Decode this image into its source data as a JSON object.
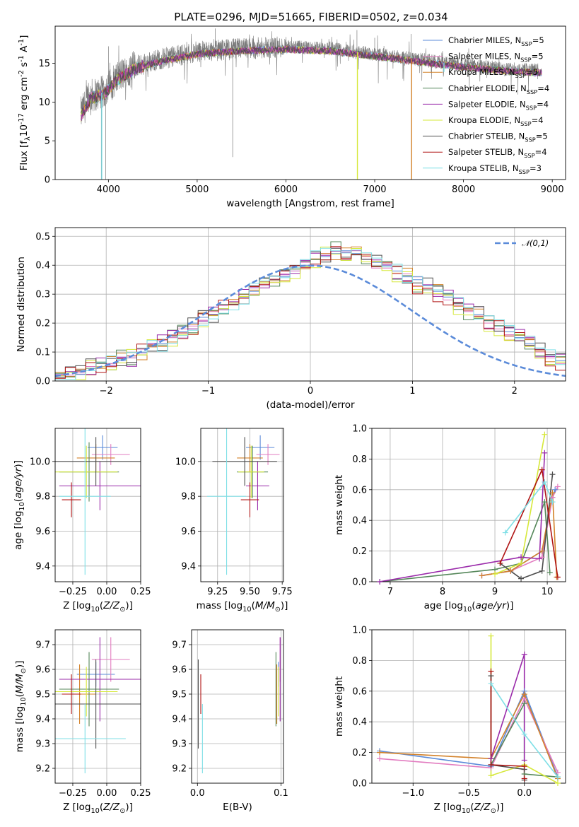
{
  "figure": {
    "title": "PLATE=0296, MJD=51665, FIBERID=0502, z=0.034",
    "models": [
      {
        "name": "Chabrier MILES, N$_{SSP}$=5",
        "color": "#5b8bd9"
      },
      {
        "name": "Salpeter MILES, N$_{SSP}$=5",
        "color": "#e27cc0"
      },
      {
        "name": "Kroupa MILES, N$_{SSP}$=5",
        "color": "#d3822a"
      },
      {
        "name": "Chabrier ELODIE, N$_{SSP}$=4",
        "color": "#55875a"
      },
      {
        "name": "Salpeter ELODIE, N$_{SSP}$=4",
        "color": "#9a2aaa"
      },
      {
        "name": "Kroupa ELODIE, N$_{SSP}$=4",
        "color": "#d6e83a"
      },
      {
        "name": "Chabrier STELIB, N$_{SSP}$=5",
        "color": "#4d4d4d"
      },
      {
        "name": "Salpeter STELIB, N$_{SSP}$=4",
        "color": "#b01515"
      },
      {
        "name": "Kroupa STELIB, N$_{SSP}$=3",
        "color": "#7fdfe6"
      }
    ]
  },
  "chart_data": [
    {
      "type": "line",
      "panel": "spectrum",
      "xlabel": "wavelength [Angstrom, rest frame]",
      "ylabel": "Flux [f$_\\lambda$10$^{-17}$ erg cm$^{-2}$ s$^{-1}$ A$^{-1}$]",
      "xlim": [
        3400,
        9150
      ],
      "ylim": [
        0,
        19.8
      ],
      "xticks": [
        4000,
        5000,
        6000,
        7000,
        8000,
        9000
      ],
      "yticks": [
        0,
        5,
        10,
        15
      ],
      "grid": false,
      "legend": "right",
      "continuum": [
        [
          3690,
          8.5
        ],
        [
          3800,
          10.8
        ],
        [
          3950,
          11.3
        ],
        [
          4100,
          13.2
        ],
        [
          4300,
          14.6
        ],
        [
          4600,
          15.6
        ],
        [
          5000,
          16.5
        ],
        [
          5500,
          16.9
        ],
        [
          6000,
          17.1
        ],
        [
          6500,
          16.9
        ],
        [
          7000,
          16.2
        ],
        [
          7500,
          15.5
        ],
        [
          8000,
          14.8
        ],
        [
          8500,
          14.3
        ],
        [
          8850,
          14.1
        ]
      ],
      "data_spikes": [
        [
          3920,
          0
        ],
        [
          3970,
          0
        ],
        [
          4000,
          17.2
        ],
        [
          5205,
          19.5
        ],
        [
          5400,
          2.9
        ],
        [
          5800,
          18.1
        ],
        [
          6800,
          19.3
        ],
        [
          7000,
          18.3
        ],
        [
          7410,
          18.8
        ]
      ],
      "model_drops": [
        [
          6805,
          0
        ],
        [
          7415,
          0
        ],
        [
          3925,
          0
        ],
        [
          7780,
          13.9
        ]
      ]
    },
    {
      "type": "bar",
      "panel": "residual-histogram",
      "xlabel": "(data-model)/error",
      "ylabel": "Normed distribution",
      "xlim": [
        -2.5,
        2.5
      ],
      "ylim": [
        0,
        0.53
      ],
      "xticks": [
        -2,
        -1,
        0,
        1,
        2
      ],
      "yticks": [
        0.0,
        0.1,
        0.2,
        0.3,
        0.4,
        0.5
      ],
      "grid": true,
      "legend": "top-right",
      "reference": {
        "name": "$\\mathcal{N}(0,1)$",
        "color": "#5b8bd9"
      },
      "bin_width": 0.1,
      "bin_start": -2.5,
      "series": [
        {
          "model": 0,
          "values": [
            0.02,
            0.03,
            0.04,
            0.05,
            0.05,
            0.06,
            0.07,
            0.08,
            0.1,
            0.12,
            0.13,
            0.15,
            0.17,
            0.2,
            0.22,
            0.23,
            0.25,
            0.27,
            0.29,
            0.31,
            0.33,
            0.35,
            0.36,
            0.38,
            0.4,
            0.42,
            0.43,
            0.44,
            0.45,
            0.44,
            0.42,
            0.41,
            0.4,
            0.38,
            0.36,
            0.35,
            0.33,
            0.31,
            0.29,
            0.27,
            0.25,
            0.23,
            0.21,
            0.19,
            0.17,
            0.15,
            0.13,
            0.11,
            0.09,
            0.07
          ]
        },
        {
          "model": 2,
          "values": [
            0.02,
            0.02,
            0.03,
            0.05,
            0.05,
            0.06,
            0.08,
            0.08,
            0.11,
            0.12,
            0.14,
            0.15,
            0.18,
            0.19,
            0.21,
            0.24,
            0.26,
            0.27,
            0.3,
            0.3,
            0.33,
            0.34,
            0.37,
            0.38,
            0.41,
            0.4,
            0.44,
            0.46,
            0.42,
            0.45,
            0.43,
            0.39,
            0.39,
            0.37,
            0.37,
            0.33,
            0.32,
            0.3,
            0.28,
            0.26,
            0.24,
            0.22,
            0.2,
            0.18,
            0.16,
            0.14,
            0.12,
            0.1,
            0.08,
            0.06
          ]
        }
      ],
      "normal_curve": true
    },
    {
      "type": "scatter",
      "panel": "age-vs-Z",
      "xlabel": "Z [log$_{10}$($Z/Z_\\odot$)]",
      "ylabel": "age  [log$_{10}$($age/yr$)]",
      "xlim": [
        -0.38,
        0.25
      ],
      "ylim": [
        9.31,
        10.19
      ],
      "xticks": [
        -0.25,
        0.0,
        0.25
      ],
      "yticks": [
        9.4,
        9.6,
        9.8,
        10.0
      ],
      "grid": true,
      "points": [
        {
          "model": 0,
          "x": -0.03,
          "y": 10.08,
          "xerr": 0.11,
          "yerr": 0.07
        },
        {
          "model": 1,
          "x": 0.03,
          "y": 10.04,
          "xerr": 0.14,
          "yerr": 0.06
        },
        {
          "model": 2,
          "x": -0.08,
          "y": 10.02,
          "xerr": 0.14,
          "yerr": 0.08
        },
        {
          "model": 3,
          "x": -0.13,
          "y": 9.94,
          "xerr": 0.22,
          "yerr": 0.17
        },
        {
          "model": 4,
          "x": -0.05,
          "y": 9.86,
          "xerr": 0.3,
          "yerr": 0.14
        },
        {
          "model": 5,
          "x": -0.15,
          "y": 9.94,
          "xerr": 0.23,
          "yerr": 0.15
        },
        {
          "model": 6,
          "x": -0.08,
          "y": 10.0,
          "xerr": 0.33,
          "yerr": 0.14
        },
        {
          "model": 7,
          "x": -0.26,
          "y": 9.78,
          "xerr": 0.07,
          "yerr": 0.1
        },
        {
          "model": 8,
          "x": -0.16,
          "y": 9.8,
          "xerr": 0.19,
          "yerr": 0.45
        }
      ]
    },
    {
      "type": "scatter",
      "panel": "age-vs-mass",
      "xlabel": "mass [log$_{10}$($M/M_\\odot$)]",
      "ylabel": "",
      "xlim": [
        9.12,
        9.76
      ],
      "ylim": [
        9.31,
        10.19
      ],
      "xticks": [
        9.25,
        9.5,
        9.75
      ],
      "yticks": [
        9.4,
        9.6,
        9.8,
        10.0
      ],
      "grid": true,
      "points": [
        {
          "model": 0,
          "x": 9.58,
          "y": 10.08,
          "xerr": 0.11,
          "yerr": 0.07
        },
        {
          "model": 1,
          "x": 9.64,
          "y": 10.04,
          "xerr": 0.09,
          "yerr": 0.06
        },
        {
          "model": 2,
          "x": 9.5,
          "y": 10.02,
          "xerr": 0.1,
          "yerr": 0.08
        },
        {
          "model": 3,
          "x": 9.52,
          "y": 9.94,
          "xerr": 0.12,
          "yerr": 0.15
        },
        {
          "model": 4,
          "x": 9.56,
          "y": 9.86,
          "xerr": 0.09,
          "yerr": 0.14
        },
        {
          "model": 5,
          "x": 9.51,
          "y": 9.94,
          "xerr": 0.1,
          "yerr": 0.15
        },
        {
          "model": 6,
          "x": 9.46,
          "y": 10.0,
          "xerr": 0.25,
          "yerr": 0.14
        },
        {
          "model": 7,
          "x": 9.5,
          "y": 9.78,
          "xerr": 0.07,
          "yerr": 0.1
        },
        {
          "model": 8,
          "x": 9.32,
          "y": 9.8,
          "xerr": 0.15,
          "yerr": 0.45
        }
      ]
    },
    {
      "type": "line",
      "panel": "mass-weight-vs-age",
      "xlabel": "age  [log$_{10}$($age/yr$)]",
      "ylabel": "mass weight",
      "xlim": [
        6.65,
        10.35
      ],
      "ylim": [
        0,
        1.0
      ],
      "xticks": [
        7,
        8,
        9,
        10
      ],
      "yticks": [
        0.0,
        0.2,
        0.4,
        0.6,
        0.8,
        1.0
      ],
      "grid": true,
      "series": [
        {
          "model": 0,
          "points": [
            [
              8.75,
              0.04
            ],
            [
              9.3,
              0.07
            ],
            [
              9.9,
              0.2
            ],
            [
              10.1,
              0.55
            ],
            [
              10.15,
              0.6
            ]
          ]
        },
        {
          "model": 1,
          "points": [
            [
              8.75,
              0.04
            ],
            [
              9.3,
              0.07
            ],
            [
              9.9,
              0.16
            ],
            [
              10.1,
              0.55
            ],
            [
              10.2,
              0.62
            ]
          ]
        },
        {
          "model": 2,
          "points": [
            [
              8.75,
              0.04
            ],
            [
              9.3,
              0.07
            ],
            [
              9.9,
              0.2
            ],
            [
              10.1,
              0.58
            ],
            [
              10.18,
              0.03
            ]
          ]
        },
        {
          "model": 3,
          "points": [
            [
              6.8,
              0.0
            ],
            [
              9.0,
              0.08
            ],
            [
              9.5,
              0.12
            ],
            [
              9.95,
              0.52
            ],
            [
              10.05,
              0.06
            ]
          ]
        },
        {
          "model": 4,
          "points": [
            [
              6.8,
              0.0
            ],
            [
              9.5,
              0.16
            ],
            [
              9.85,
              0.15
            ],
            [
              9.95,
              0.84
            ]
          ]
        },
        {
          "model": 5,
          "points": [
            [
              9.0,
              0.05
            ],
            [
              9.5,
              0.12
            ],
            [
              9.95,
              0.96
            ]
          ]
        },
        {
          "model": 6,
          "points": [
            [
              9.1,
              0.12
            ],
            [
              9.5,
              0.02
            ],
            [
              9.9,
              0.07
            ],
            [
              10.1,
              0.7
            ]
          ]
        },
        {
          "model": 7,
          "points": [
            [
              9.1,
              0.12
            ],
            [
              9.9,
              0.73
            ],
            [
              10.2,
              0.03
            ]
          ]
        },
        {
          "model": 8,
          "points": [
            [
              9.2,
              0.32
            ],
            [
              9.95,
              0.65
            ],
            [
              10.1,
              0.52
            ]
          ]
        }
      ]
    },
    {
      "type": "scatter",
      "panel": "mass-vs-Z",
      "xlabel": "Z [log$_{10}$($Z/Z_\\odot$)]",
      "ylabel": "mass [log$_{10}$($M/M_\\odot$)]",
      "xlim": [
        -0.38,
        0.25
      ],
      "ylim": [
        9.14,
        9.76
      ],
      "xticks": [
        -0.25,
        0.0,
        0.25
      ],
      "yticks": [
        9.2,
        9.3,
        9.4,
        9.5,
        9.6,
        9.7
      ],
      "grid": true,
      "points": [
        {
          "model": 0,
          "x": -0.08,
          "y": 9.58,
          "xerr": 0.14,
          "yerr": 0.05
        },
        {
          "model": 1,
          "x": 0.03,
          "y": 9.64,
          "xerr": 0.14,
          "yerr": 0.09
        },
        {
          "model": 2,
          "x": -0.2,
          "y": 9.5,
          "xerr": 0.12,
          "yerr": 0.12
        },
        {
          "model": 3,
          "x": -0.13,
          "y": 9.52,
          "xerr": 0.22,
          "yerr": 0.15
        },
        {
          "model": 4,
          "x": -0.05,
          "y": 9.56,
          "xerr": 0.3,
          "yerr": 0.17
        },
        {
          "model": 5,
          "x": -0.15,
          "y": 9.51,
          "xerr": 0.23,
          "yerr": 0.1
        },
        {
          "model": 6,
          "x": -0.08,
          "y": 9.46,
          "xerr": 0.33,
          "yerr": 0.18
        },
        {
          "model": 7,
          "x": -0.26,
          "y": 9.5,
          "xerr": 0.07,
          "yerr": 0.08
        },
        {
          "model": 8,
          "x": -0.16,
          "y": 9.32,
          "xerr": 0.3,
          "yerr": 0.14
        }
      ]
    },
    {
      "type": "scatter",
      "panel": "mass-vs-EBV",
      "xlabel": "E(B-V)",
      "ylabel": "",
      "xlim": [
        -0.007,
        0.103
      ],
      "ylim": [
        9.14,
        9.76
      ],
      "xticks": [
        0.0,
        0.1
      ],
      "yticks": [
        9.2,
        9.3,
        9.4,
        9.5,
        9.6,
        9.7
      ],
      "grid": true,
      "points": [
        {
          "model": 0,
          "x": 0.097,
          "y": 9.58,
          "yerr": 0.05
        },
        {
          "model": 1,
          "x": 0.099,
          "y": 9.64,
          "yerr": 0.09
        },
        {
          "model": 2,
          "x": 0.095,
          "y": 9.5,
          "yerr": 0.12
        },
        {
          "model": 3,
          "x": 0.094,
          "y": 9.52,
          "yerr": 0.15
        },
        {
          "model": 4,
          "x": 0.099,
          "y": 9.56,
          "yerr": 0.17
        },
        {
          "model": 5,
          "x": 0.097,
          "y": 9.51,
          "yerr": 0.1
        },
        {
          "model": 6,
          "x": 0.001,
          "y": 9.46,
          "yerr": 0.18
        },
        {
          "model": 7,
          "x": 0.004,
          "y": 9.5,
          "yerr": 0.08
        },
        {
          "model": 8,
          "x": 0.006,
          "y": 9.32,
          "yerr": 0.14
        }
      ]
    },
    {
      "type": "line",
      "panel": "mass-weight-vs-Z",
      "xlabel": "Z [log$_{10}$($Z/Z_\\odot$)]",
      "ylabel": "mass weight",
      "xlim": [
        -1.37,
        0.37
      ],
      "ylim": [
        0,
        1.0
      ],
      "xticks": [
        -1.0,
        -0.5,
        0.0
      ],
      "yticks": [
        0.0,
        0.2,
        0.4,
        0.6,
        0.8,
        1.0
      ],
      "grid": true,
      "series": [
        {
          "model": 0,
          "points": [
            [
              -1.3,
              0.21
            ],
            [
              -0.3,
              0.11
            ],
            [
              0.0,
              0.6
            ],
            [
              0.3,
              0.04
            ]
          ]
        },
        {
          "model": 1,
          "points": [
            [
              -1.3,
              0.16
            ],
            [
              -0.3,
              0.1
            ],
            [
              0.0,
              0.55
            ],
            [
              0.3,
              0.07
            ]
          ]
        },
        {
          "model": 2,
          "points": [
            [
              -1.3,
              0.2
            ],
            [
              -0.3,
              0.16
            ],
            [
              0.0,
              0.58
            ],
            [
              0.3,
              0.03
            ]
          ]
        },
        {
          "model": 3,
          "points": [
            [
              -0.3,
              0.12
            ],
            [
              0.0,
              0.52
            ],
            [
              0.0,
              0.06
            ],
            [
              0.3,
              0.04
            ]
          ]
        },
        {
          "model": 4,
          "points": [
            [
              -0.3,
              0.16
            ],
            [
              0.0,
              0.84
            ],
            [
              0.0,
              0.15
            ]
          ]
        },
        {
          "model": 5,
          "points": [
            [
              -0.3,
              0.96
            ],
            [
              -0.3,
              0.05
            ],
            [
              0.0,
              0.12
            ],
            [
              0.3,
              0.0
            ]
          ]
        },
        {
          "model": 6,
          "points": [
            [
              -0.3,
              0.7
            ],
            [
              -0.3,
              0.12
            ],
            [
              0.0,
              0.09
            ],
            [
              0.0,
              0.02
            ]
          ]
        },
        {
          "model": 7,
          "points": [
            [
              -0.3,
              0.73
            ],
            [
              -0.3,
              0.12
            ],
            [
              0.0,
              0.11
            ],
            [
              0.0,
              0.03
            ]
          ]
        },
        {
          "model": 8,
          "points": [
            [
              -0.3,
              0.65
            ],
            [
              0.0,
              0.32
            ],
            [
              0.3,
              0.04
            ]
          ]
        }
      ]
    }
  ]
}
